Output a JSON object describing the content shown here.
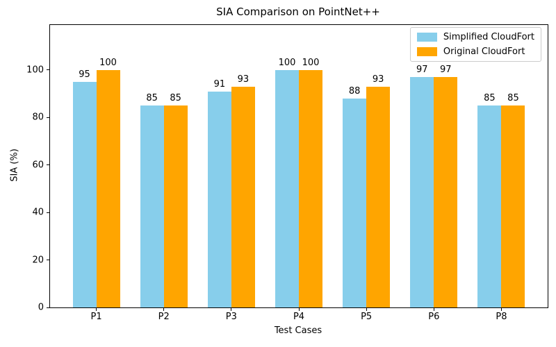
{
  "chart_data": {
    "type": "bar",
    "title": "SIA Comparison on PointNet++",
    "xlabel": "Test Cases",
    "ylabel": "SIA (%)",
    "categories": [
      "P1",
      "P2",
      "P3",
      "P4",
      "P5",
      "P6",
      "P8"
    ],
    "series": [
      {
        "name": "Simplified CloudFort",
        "color": "#87CEEB",
        "values": [
          95,
          85,
          91,
          100,
          88,
          97,
          85
        ]
      },
      {
        "name": "Original CloudFort",
        "color": "#FFA500",
        "values": [
          100,
          85,
          93,
          100,
          93,
          97,
          85
        ]
      }
    ],
    "ylim": [
      0,
      119
    ],
    "yticks": [
      0,
      20,
      40,
      60,
      80,
      100
    ],
    "bar_value_labels": true,
    "grid": false,
    "legend_position": "upper right",
    "bar_width_fraction": 0.35
  }
}
